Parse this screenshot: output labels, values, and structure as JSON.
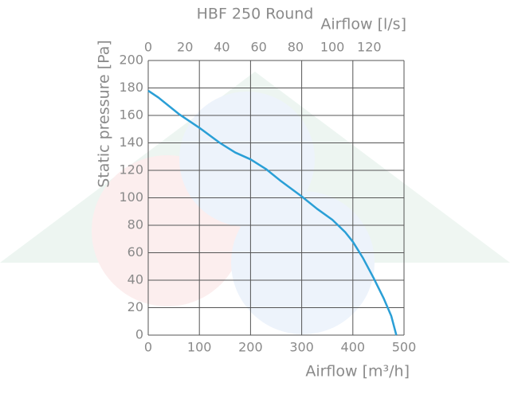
{
  "chart_data": {
    "type": "line",
    "title": "HBF 250 Round",
    "x_label": "Airflow [m³/h]",
    "x2_label": "Airflow [l/s]",
    "y_label": "Static pressure [Pa]",
    "x": [
      0,
      20,
      60,
      100,
      140,
      170,
      200,
      230,
      260,
      300,
      330,
      360,
      385,
      400,
      420,
      440,
      460,
      475,
      485
    ],
    "values": [
      178,
      173,
      161,
      151,
      140,
      133,
      128,
      121,
      112,
      101,
      92,
      84,
      75,
      68,
      56,
      42,
      27,
      14,
      0
    ],
    "color": "#2a9fd6",
    "xlim": [
      0,
      500
    ],
    "xticks": [
      0,
      100,
      200,
      300,
      400,
      500
    ],
    "x2lim": [
      0,
      138.9
    ],
    "x2ticks": [
      0,
      20,
      40,
      60,
      80,
      100,
      120
    ],
    "ylim": [
      0,
      200
    ],
    "yticks": [
      0,
      20,
      40,
      60,
      80,
      100,
      120,
      140,
      160,
      180,
      200
    ],
    "grid": true
  }
}
